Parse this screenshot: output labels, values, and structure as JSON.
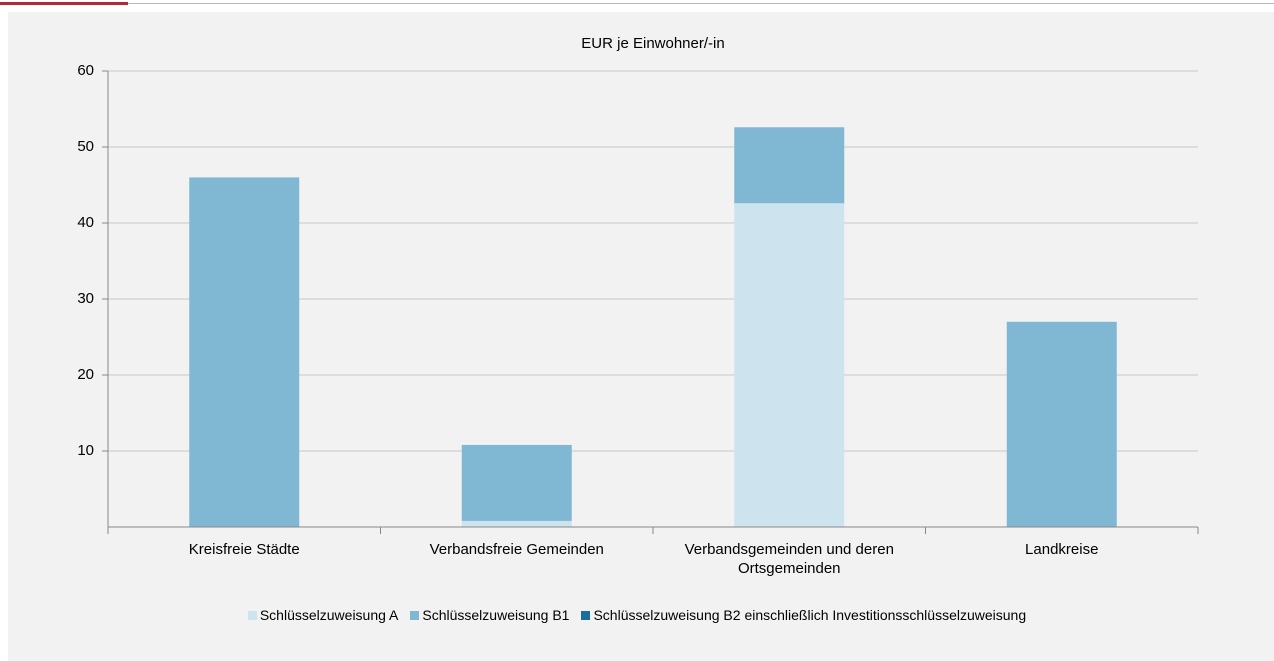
{
  "chart_data": {
    "type": "stacked_bar",
    "title": "EUR je Einwohner/-in",
    "categories": [
      "Kreisfreie Städte",
      "Verbandsfreie Gemeinden",
      "Verbandsgemeinden und deren Ortsgemeinden",
      "Landkreise"
    ],
    "series": [
      {
        "name": "Schlüsselzuweisung A",
        "color": "#cde3ee",
        "values": [
          0,
          0.8,
          42.6,
          0
        ]
      },
      {
        "name": "Schlüsselzuweisung B1",
        "color": "#80b8d4",
        "values": [
          46,
          10,
          10,
          27
        ]
      },
      {
        "name": "Schlüsselzuweisung B2 einschließlich Investitionsschlüsselzuweisung",
        "color": "#1a6f9e",
        "values": [
          0,
          0,
          0,
          0
        ]
      }
    ],
    "ylim": [
      0,
      60
    ],
    "yticks": [
      10,
      20,
      30,
      40,
      50,
      60
    ],
    "grid": true,
    "legend": "bottom"
  }
}
